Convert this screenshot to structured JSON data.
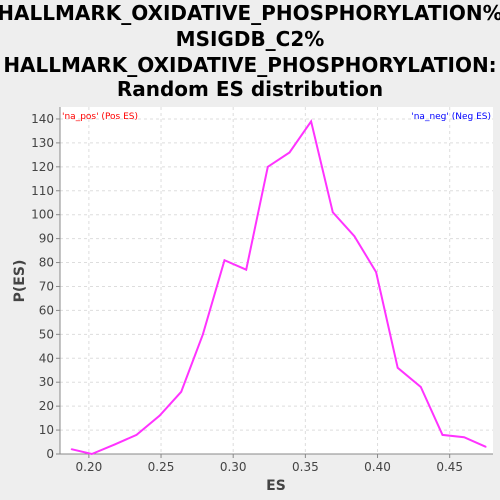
{
  "chart_data": {
    "type": "line",
    "title_lines": [
      "HALLMARK_OXIDATIVE_PHOSPHORYLATION%",
      "MSIGDB_C2%",
      "HALLMARK_OXIDATIVE_PHOSPHORYLATION:",
      "Random ES distribution"
    ],
    "xlabel": "ES",
    "ylabel": "P(ES)",
    "xlim": [
      0.18,
      0.48
    ],
    "ylim": [
      0,
      145
    ],
    "x_ticks": [
      0.2,
      0.25,
      0.3,
      0.35,
      0.4,
      0.45
    ],
    "x_tick_labels": [
      "0.20",
      "0.25",
      "0.30",
      "0.35",
      "0.40",
      "0.45"
    ],
    "y_ticks": [
      0,
      10,
      20,
      30,
      40,
      50,
      60,
      70,
      80,
      90,
      100,
      110,
      120,
      130,
      140
    ],
    "grid": true,
    "legend": [
      {
        "label": "'na_pos' (Pos ES)",
        "position": "top-left",
        "color": "#ff0000"
      },
      {
        "label": "'na_neg' (Neg ES)",
        "position": "top-right",
        "color": "#0000ff"
      }
    ],
    "series": [
      {
        "color": "#ff33ff",
        "x": [
          0.188,
          0.202,
          0.218,
          0.233,
          0.249,
          0.264,
          0.279,
          0.294,
          0.309,
          0.324,
          0.339,
          0.354,
          0.369,
          0.384,
          0.399,
          0.414,
          0.43,
          0.445,
          0.46,
          0.475
        ],
        "y": [
          2,
          0,
          4,
          8,
          16,
          26,
          50,
          81,
          77,
          120,
          126,
          139,
          101,
          91,
          76,
          36,
          28,
          8,
          7,
          3
        ]
      }
    ]
  },
  "colors": {
    "background": "#eeeeee",
    "plot_background": "#ffffff",
    "gridline": "#dddddd",
    "axis": "#888888"
  }
}
